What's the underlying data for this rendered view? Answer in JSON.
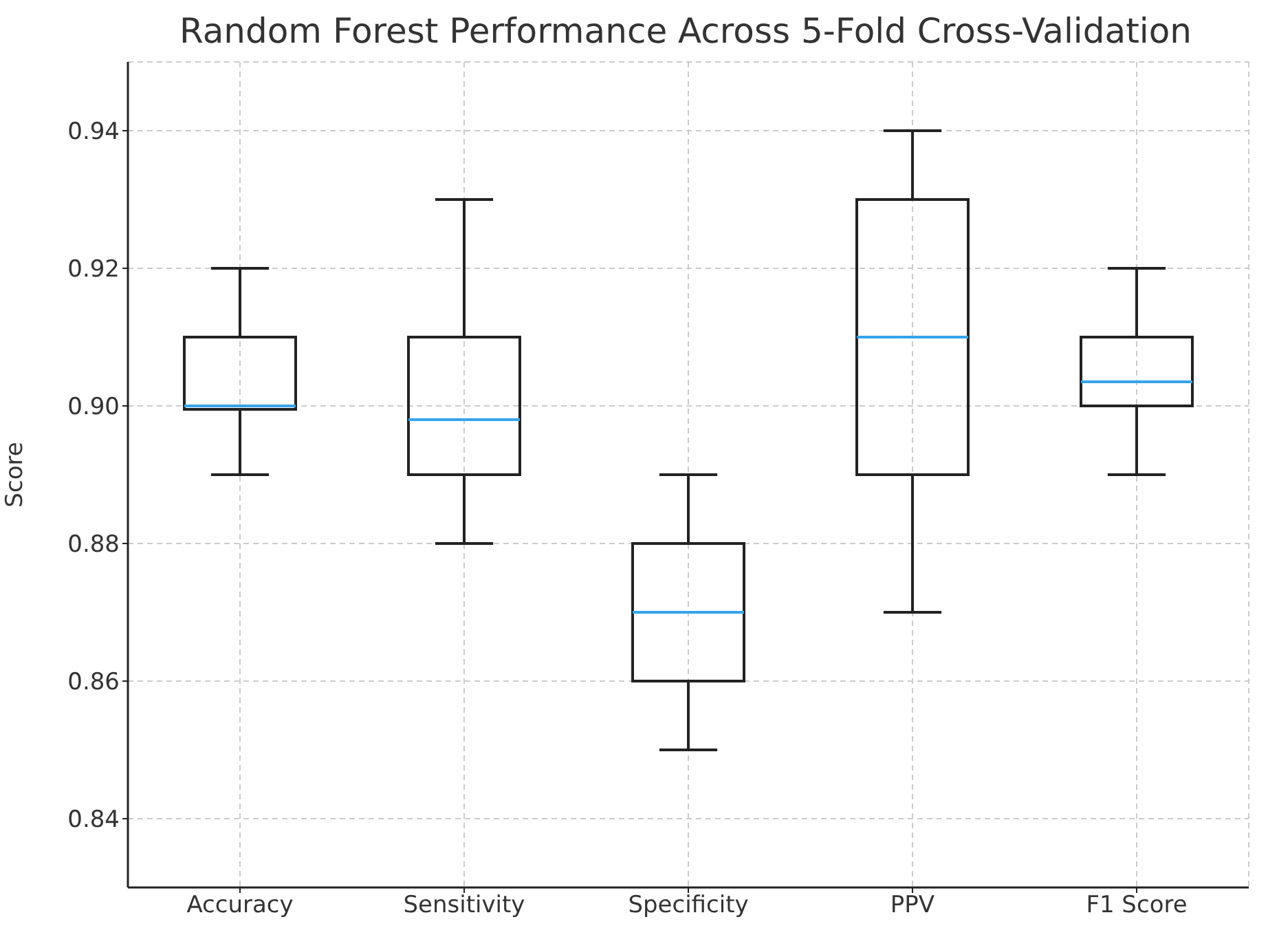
{
  "chart_data": {
    "type": "box",
    "title": "Random Forest Performance Across 5-Fold Cross-Validation",
    "ylabel": "Score",
    "categories": [
      "Accuracy",
      "Sensitivity",
      "Specificity",
      "PPV",
      "F1 Score"
    ],
    "boxes": [
      {
        "low": 0.89,
        "q1": 0.8995,
        "median": 0.9,
        "q3": 0.91,
        "high": 0.92
      },
      {
        "low": 0.88,
        "q1": 0.89,
        "median": 0.898,
        "q3": 0.91,
        "high": 0.93
      },
      {
        "low": 0.85,
        "q1": 0.86,
        "median": 0.87,
        "q3": 0.88,
        "high": 0.89
      },
      {
        "low": 0.87,
        "q1": 0.89,
        "median": 0.91,
        "q3": 0.93,
        "high": 0.94
      },
      {
        "low": 0.89,
        "q1": 0.9,
        "median": 0.9035,
        "q3": 0.91,
        "high": 0.92
      }
    ],
    "ylim": [
      0.83,
      0.95
    ],
    "yticks": [
      0.84,
      0.86,
      0.88,
      {
        "value": 0.9,
        "label": "0.90"
      },
      0.92,
      0.94
    ],
    "grid": true
  }
}
